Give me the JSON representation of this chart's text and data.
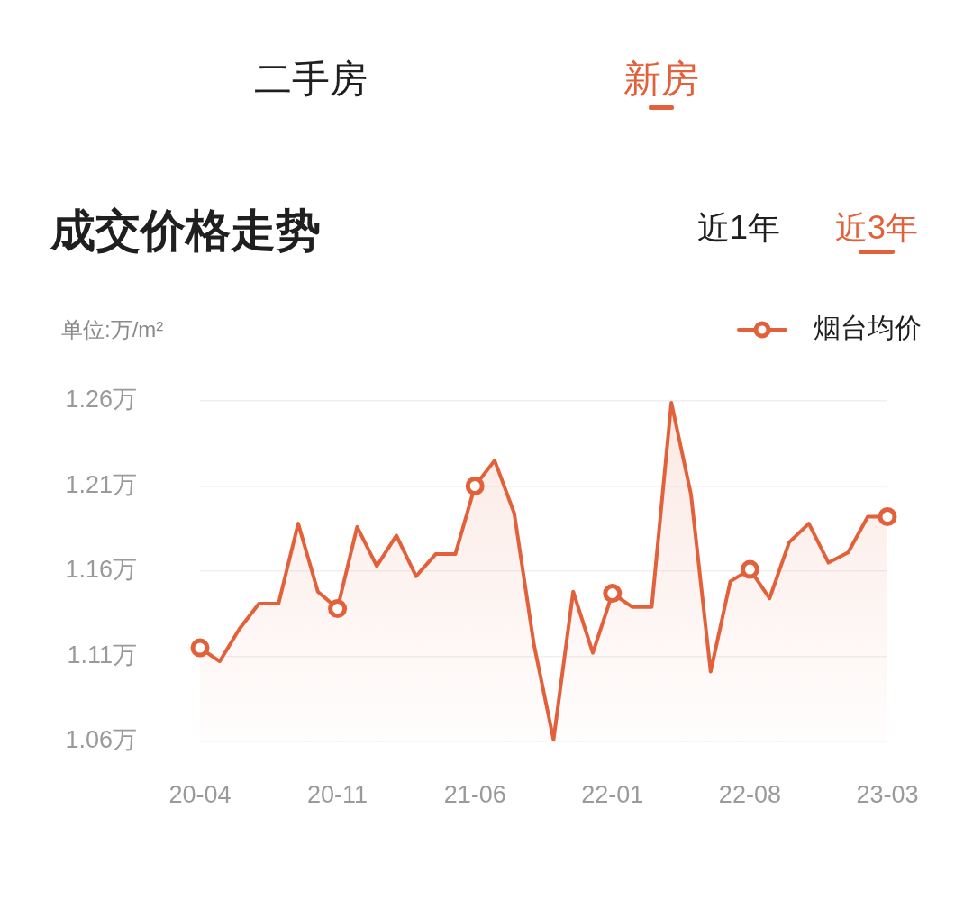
{
  "chart_data": {
    "type": "area",
    "title": "成交价格走势",
    "ylabel": "单位:万/m²",
    "annotations": [
      "二手房",
      "新房",
      "近1年",
      "近3年"
    ],
    "categories": [
      "20-04",
      null,
      null,
      null,
      null,
      null,
      null,
      "20-11",
      null,
      null,
      null,
      null,
      null,
      null,
      "21-06",
      null,
      null,
      null,
      null,
      null,
      null,
      "22-01",
      null,
      null,
      null,
      null,
      null,
      null,
      "22-08",
      null,
      null,
      null,
      null,
      null,
      null,
      "23-03"
    ],
    "series": [
      {
        "name": "烟台均价",
        "color": "#e2603a",
        "values": [
          1.115,
          1.107,
          1.126,
          1.141,
          1.141,
          1.188,
          1.148,
          1.138,
          1.186,
          1.163,
          1.181,
          1.157,
          1.17,
          1.17,
          1.21,
          1.225,
          1.194,
          1.117,
          1.061,
          1.148,
          1.112,
          1.147,
          1.139,
          1.139,
          1.259,
          1.205,
          1.101,
          1.154,
          1.161,
          1.144,
          1.177,
          1.188,
          1.165,
          1.171,
          1.192,
          1.192
        ]
      },
      {
        "type": "scatter",
        "marker": "circle",
        "color": "#e2603a",
        "x": [
          "20-04",
          "20-11",
          "21-06",
          "22-01",
          "22-08",
          "23-03"
        ],
        "values": [
          1.115,
          1.138,
          1.21,
          1.147,
          1.161,
          1.192
        ]
      }
    ],
    "ylim": [
      1.06,
      1.26
    ],
    "yticks": [
      {
        "value": 1.06,
        "label": "1.06万"
      },
      {
        "value": 1.11,
        "label": "1.11万"
      },
      {
        "value": 1.16,
        "label": "1.16万"
      },
      {
        "value": 1.21,
        "label": "1.21万"
      },
      {
        "value": 1.26,
        "label": "1.26万"
      }
    ],
    "grid": "y",
    "legend": "top right"
  }
}
